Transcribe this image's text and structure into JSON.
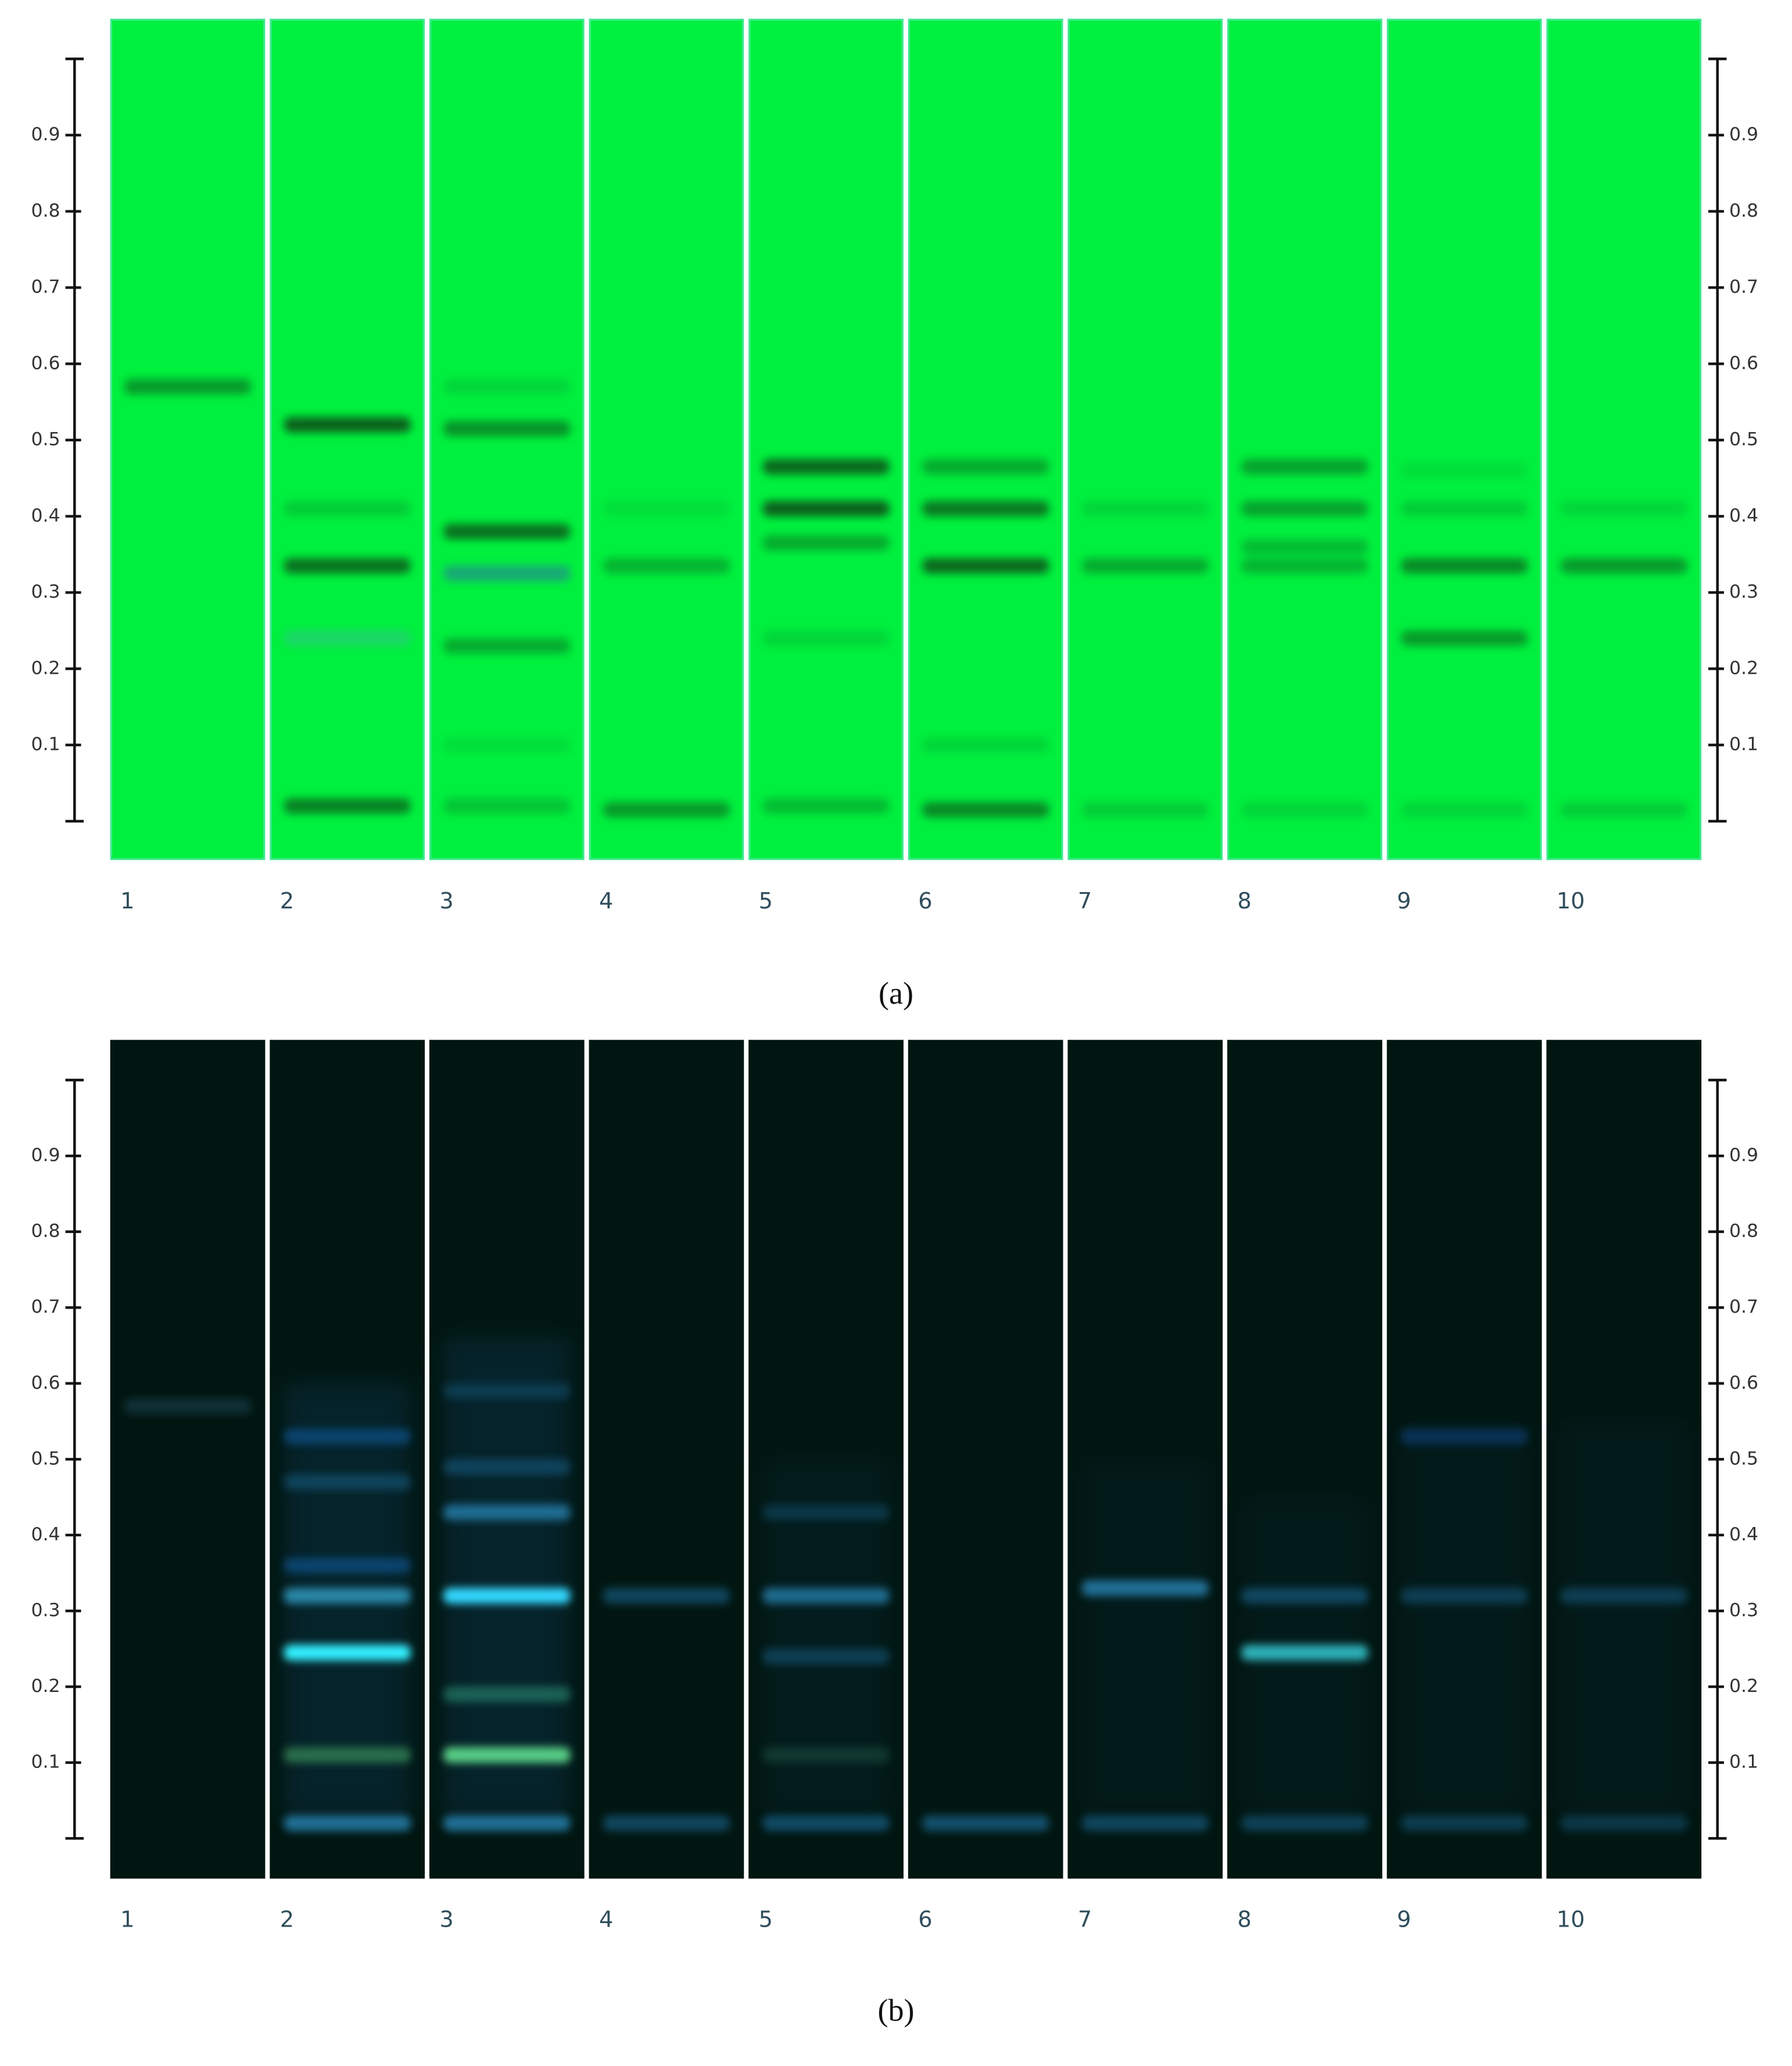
{
  "panels": [
    {
      "label": "(a)",
      "scale_range": [
        0,
        1
      ],
      "scale_ticks": [
        0.1,
        0.2,
        0.3,
        0.4,
        0.5,
        0.6,
        0.7,
        0.8,
        0.9
      ],
      "lanes": [
        "1",
        "2",
        "3",
        "4",
        "5",
        "6",
        "7",
        "8",
        "9",
        "10"
      ]
    },
    {
      "label": "(b)",
      "scale_range": [
        0,
        1
      ],
      "scale_ticks": [
        0.1,
        0.2,
        0.3,
        0.4,
        0.5,
        0.6,
        0.7,
        0.8,
        0.9
      ],
      "lanes": [
        "1",
        "2",
        "3",
        "4",
        "5",
        "6",
        "7",
        "8",
        "9",
        "10"
      ]
    }
  ]
}
